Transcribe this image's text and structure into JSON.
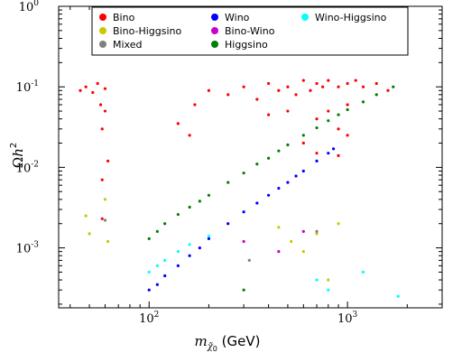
{
  "chart_data": {
    "type": "scatter",
    "x_scale": "log",
    "y_scale": "log",
    "xlim": [
      35,
      3000
    ],
    "ylim": [
      0.00018,
      1.0
    ],
    "xlabel_parts": [
      "m",
      "χ̃",
      "0",
      " (GeV)"
    ],
    "ylabel_parts": [
      "Ω",
      "h",
      "2"
    ],
    "x_ticks": [
      {
        "value": 100,
        "base": "10",
        "exp": "2"
      },
      {
        "value": 1000,
        "base": "10",
        "exp": "3"
      }
    ],
    "y_ticks": [
      {
        "value": 1.0,
        "base": "10",
        "exp": "0"
      },
      {
        "value": 0.1,
        "base": "10",
        "exp": "-1"
      },
      {
        "value": 0.01,
        "base": "10",
        "exp": "-2"
      },
      {
        "value": 0.001,
        "base": "10",
        "exp": "-3"
      }
    ],
    "grid": false,
    "legend_position": "top",
    "series": [
      {
        "name": "Bino",
        "color": "#ff0000",
        "points": [
          [
            45,
            0.09
          ],
          [
            48,
            0.1
          ],
          [
            52,
            0.085
          ],
          [
            55,
            0.11
          ],
          [
            57,
            0.06
          ],
          [
            58,
            0.03
          ],
          [
            58,
            0.007
          ],
          [
            58,
            0.0023
          ],
          [
            60,
            0.05
          ],
          [
            60,
            0.095
          ],
          [
            62,
            0.012
          ],
          [
            140,
            0.035
          ],
          [
            160,
            0.025
          ],
          [
            170,
            0.06
          ],
          [
            200,
            0.09
          ],
          [
            250,
            0.08
          ],
          [
            300,
            0.1
          ],
          [
            350,
            0.07
          ],
          [
            400,
            0.11
          ],
          [
            450,
            0.09
          ],
          [
            500,
            0.1
          ],
          [
            550,
            0.08
          ],
          [
            600,
            0.12
          ],
          [
            650,
            0.09
          ],
          [
            700,
            0.11
          ],
          [
            750,
            0.1
          ],
          [
            800,
            0.12
          ],
          [
            900,
            0.1
          ],
          [
            1000,
            0.11
          ],
          [
            1100,
            0.12
          ],
          [
            1200,
            0.1
          ],
          [
            1400,
            0.11
          ],
          [
            1600,
            0.09
          ],
          [
            700,
            0.04
          ],
          [
            800,
            0.05
          ],
          [
            900,
            0.03
          ],
          [
            1000,
            0.06
          ],
          [
            600,
            0.02
          ],
          [
            700,
            0.015
          ],
          [
            500,
            0.05
          ],
          [
            400,
            0.045
          ],
          [
            900,
            0.014
          ],
          [
            1000,
            0.025
          ]
        ]
      },
      {
        "name": "Bino-Higgsino",
        "color": "#c8c800",
        "points": [
          [
            48,
            0.0025
          ],
          [
            50,
            0.0015
          ],
          [
            60,
            0.004
          ],
          [
            62,
            0.0012
          ],
          [
            450,
            0.0018
          ],
          [
            520,
            0.0012
          ],
          [
            600,
            0.0009
          ],
          [
            700,
            0.0015
          ],
          [
            800,
            0.0004
          ],
          [
            900,
            0.002
          ]
        ]
      },
      {
        "name": "Mixed",
        "color": "#808080",
        "points": [
          [
            60,
            0.0022
          ],
          [
            320,
            0.0007
          ],
          [
            700,
            0.0016
          ]
        ]
      },
      {
        "name": "Wino",
        "color": "#0000ff",
        "points": [
          [
            100,
            0.0003
          ],
          [
            110,
            0.00035
          ],
          [
            120,
            0.00045
          ],
          [
            140,
            0.0006
          ],
          [
            160,
            0.0008
          ],
          [
            180,
            0.001
          ],
          [
            200,
            0.0013
          ],
          [
            250,
            0.002
          ],
          [
            300,
            0.0028
          ],
          [
            350,
            0.0036
          ],
          [
            400,
            0.0045
          ],
          [
            450,
            0.0055
          ],
          [
            500,
            0.0065
          ],
          [
            550,
            0.0078
          ],
          [
            600,
            0.009
          ],
          [
            700,
            0.012
          ],
          [
            800,
            0.015
          ],
          [
            850,
            0.017
          ]
        ]
      },
      {
        "name": "Bino-Wino",
        "color": "#cc00cc",
        "points": [
          [
            300,
            0.0012
          ],
          [
            450,
            0.0009
          ],
          [
            600,
            0.0016
          ]
        ]
      },
      {
        "name": "Higgsino",
        "color": "#008000",
        "points": [
          [
            100,
            0.0013
          ],
          [
            110,
            0.0016
          ],
          [
            120,
            0.002
          ],
          [
            140,
            0.0026
          ],
          [
            160,
            0.0032
          ],
          [
            180,
            0.0038
          ],
          [
            200,
            0.0045
          ],
          [
            250,
            0.0065
          ],
          [
            300,
            0.0085
          ],
          [
            350,
            0.011
          ],
          [
            400,
            0.013
          ],
          [
            450,
            0.016
          ],
          [
            500,
            0.019
          ],
          [
            600,
            0.025
          ],
          [
            700,
            0.031
          ],
          [
            800,
            0.038
          ],
          [
            900,
            0.045
          ],
          [
            1000,
            0.052
          ],
          [
            1200,
            0.065
          ],
          [
            1400,
            0.08
          ],
          [
            1700,
            0.1
          ],
          [
            300,
            0.0003
          ]
        ]
      },
      {
        "name": "Wino-Higgsino",
        "color": "#00ffff",
        "points": [
          [
            100,
            0.0005
          ],
          [
            110,
            0.0006
          ],
          [
            120,
            0.0007
          ],
          [
            140,
            0.0009
          ],
          [
            160,
            0.0011
          ],
          [
            200,
            0.0014
          ],
          [
            700,
            0.0004
          ],
          [
            800,
            0.0003
          ],
          [
            1200,
            0.0005
          ],
          [
            1800,
            0.00025
          ]
        ]
      }
    ]
  }
}
